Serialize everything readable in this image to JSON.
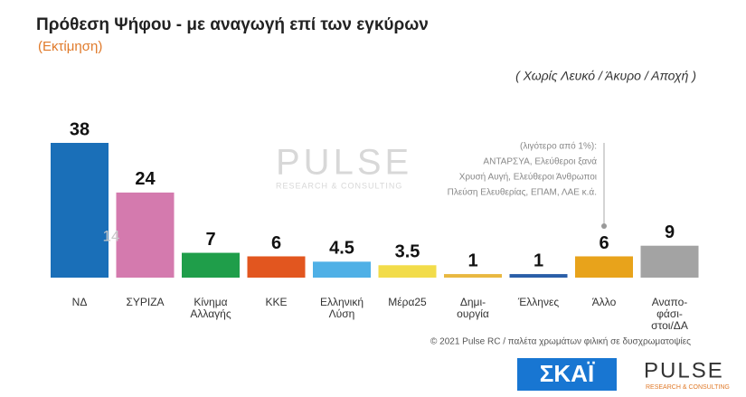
{
  "chart_data": {
    "type": "bar",
    "title": "Πρόθεση Ψήφου - με αναγωγή επί των εγκύρων",
    "subtitle": "(Εκτίμηση)",
    "note": "( Χωρίς Λευκό / Άκυρο / Αποχή )",
    "categories": [
      "ΝΔ",
      "ΣΥΡΙΖΑ",
      "Κίνημα\nΑλλαγής",
      "ΚΚΕ",
      "Ελληνική\nΛύση",
      "Μέρα25",
      "Δημι-\nουργία",
      "Έλληνες",
      "Άλλο",
      "Αναπο-\nφάσι-\nστοι/ΔΑ"
    ],
    "values": [
      38,
      24,
      7,
      6,
      4.5,
      3.5,
      1,
      1,
      6,
      9
    ],
    "colors": [
      "#1a6fb8",
      "#d47aae",
      "#1f9e4a",
      "#e2561f",
      "#4fb0e6",
      "#f2dc4a",
      "#e9b840",
      "#2a5ea8",
      "#e8a31b",
      "#a3a3a3"
    ],
    "inset_label": "14",
    "side_note": [
      "(λιγότερο από 1%):",
      "ΑΝΤΑΡΣΥΑ, Ελεύθεροι ξανά",
      "Χρυσή Αυγή, Ελεύθεροι Άνθρωποι",
      "Πλεύση Ελευθερίας, ΕΠΑΜ, ΛΑΕ κ.ά."
    ],
    "footer": "© 2021 Pulse RC  /  παλέτα χρωμάτων φιλική σε δυσχρωματοψίες",
    "logo_left": "ΣΚΑΪ",
    "logo_right": "PULSE",
    "logo_right_sub": "RESEARCH & CONSULTING"
  }
}
